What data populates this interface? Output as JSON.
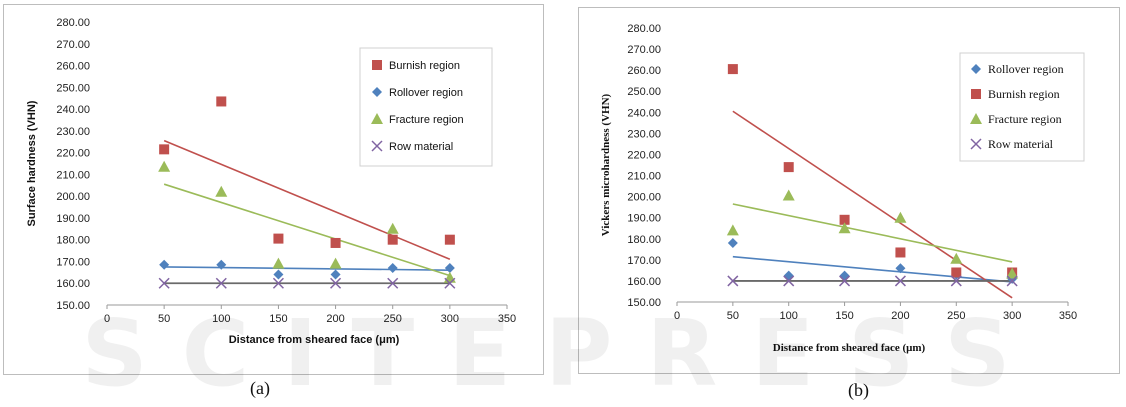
{
  "panels": [
    {
      "caption": "(a)",
      "chart_data": {
        "type": "scatter",
        "ylabel": "Surface hardness (VHN)",
        "xlabel": "Distance from sheared face (μm)",
        "xlim": [
          0,
          350
        ],
        "ylim": [
          150,
          280
        ],
        "xticks": [
          "0",
          "50",
          "100",
          "150",
          "200",
          "250",
          "300",
          "350"
        ],
        "yticks": [
          "150.00",
          "160.00",
          "170.00",
          "180.00",
          "190.00",
          "200.00",
          "210.00",
          "220.00",
          "230.00",
          "240.00",
          "250.00",
          "260.00",
          "270.00",
          "280.00"
        ],
        "legend_position": "top-right",
        "series": [
          {
            "name": "Burnish region",
            "marker": "square",
            "color": "#c0504d",
            "x": [
              50,
              100,
              150,
              200,
              250,
              300
            ],
            "y": [
              221.5,
              243.5,
              180.5,
              178.5,
              180,
              180
            ],
            "trend": [
              225.5,
              171
            ]
          },
          {
            "name": "Rollover region",
            "marker": "diamond",
            "color": "#4f81bd",
            "x": [
              50,
              100,
              150,
              200,
              250,
              300
            ],
            "y": [
              168.5,
              168.5,
              164,
              164,
              167,
              167
            ],
            "trend": [
              167.5,
              166
            ]
          },
          {
            "name": "Fracture region",
            "marker": "triangle",
            "color": "#9bbb59",
            "x": [
              50,
              100,
              150,
              200,
              250,
              300
            ],
            "y": [
              213.5,
              202,
              169,
              169,
              185,
              162.5
            ],
            "trend": [
              205.5,
              163.5
            ]
          },
          {
            "name": "Row material",
            "marker": "cross",
            "color": "#8064a2",
            "x": [
              50,
              100,
              150,
              200,
              250,
              300
            ],
            "y": [
              160,
              160,
              160,
              160,
              160,
              160
            ],
            "trend": [
              160,
              160
            ]
          }
        ]
      }
    },
    {
      "caption": "(b)",
      "chart_data": {
        "type": "scatter",
        "ylabel": "Vickers microhardness (VHN)",
        "xlabel": "Distance from sheared face (μm)",
        "xlim": [
          0,
          350
        ],
        "ylim": [
          150,
          280
        ],
        "xticks": [
          "0",
          "50",
          "100",
          "150",
          "200",
          "250",
          "300",
          "350"
        ],
        "yticks": [
          "150.00",
          "160.00",
          "170.00",
          "180.00",
          "190.00",
          "200.00",
          "210.00",
          "220.00",
          "230.00",
          "240.00",
          "250.00",
          "260.00",
          "270.00",
          "280.00"
        ],
        "legend_position": "top-right",
        "series": [
          {
            "name": "Rollover region",
            "marker": "diamond",
            "color": "#4f81bd",
            "x": [
              50,
              100,
              150,
              200,
              250,
              300
            ],
            "y": [
              178,
              162.5,
              162.5,
              166,
              163,
              161
            ],
            "trend": [
              171.5,
              159.5
            ]
          },
          {
            "name": "Burnish region",
            "marker": "square",
            "color": "#c0504d",
            "x": [
              50,
              100,
              150,
              200,
              250,
              300
            ],
            "y": [
              260.5,
              214,
              189,
              173.5,
              164,
              164
            ],
            "trend": [
              240.5,
              152
            ]
          },
          {
            "name": "Fracture region",
            "marker": "triangle",
            "color": "#9bbb59",
            "x": [
              50,
              100,
              150,
              200,
              250,
              300
            ],
            "y": [
              184,
              200.5,
              185,
              190,
              170.5,
              163.5
            ],
            "trend": [
              196.5,
              169
            ]
          },
          {
            "name": "Row material",
            "marker": "cross",
            "color": "#8064a2",
            "x": [
              50,
              100,
              150,
              200,
              250,
              300
            ],
            "y": [
              160,
              160,
              160,
              160,
              160,
              160
            ],
            "trend": [
              160,
              160
            ]
          }
        ]
      }
    }
  ],
  "watermark": "SCITEPRESS"
}
